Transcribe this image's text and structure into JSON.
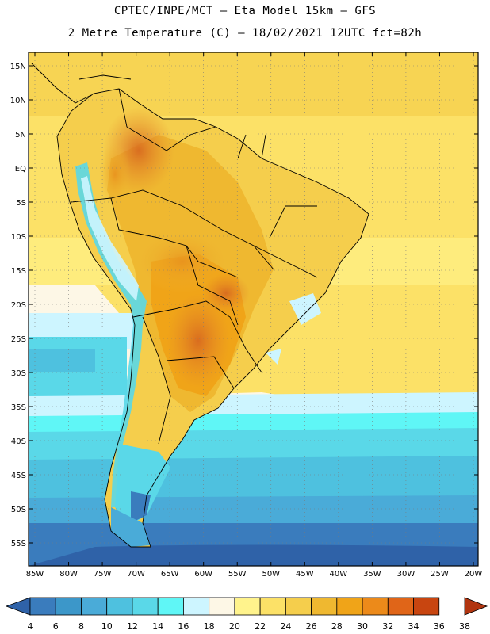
{
  "header": {
    "line1": "CPTEC/INPE/MCT –   Eta Model 15km – GFS",
    "line2": "2 Metre Temperature (C) – 18/02/2021 12UTC fct=82h"
  },
  "axes": {
    "lat_labels": [
      "15N",
      "10N",
      "5N",
      "EQ",
      "5S",
      "10S",
      "15S",
      "20S",
      "25S",
      "30S",
      "35S",
      "40S",
      "45S",
      "50S",
      "55S"
    ],
    "lon_labels": [
      "85W",
      "80W",
      "75W",
      "70W",
      "65W",
      "60W",
      "55W",
      "50W",
      "45W",
      "40W",
      "35W",
      "30W",
      "25W",
      "20W"
    ]
  },
  "colorbar": {
    "values": [
      "4",
      "6",
      "8",
      "10",
      "12",
      "14",
      "16",
      "18",
      "20",
      "22",
      "24",
      "26",
      "28",
      "30",
      "32",
      "34",
      "36",
      "38"
    ],
    "colors": [
      "#2f62a8",
      "#3a7cbd",
      "#3c97c9",
      "#4aabd8",
      "#4ec1df",
      "#5ad8e8",
      "#5ff6f6",
      "#cdf5ff",
      "#fdf7e6",
      "#fff38c",
      "#fce167",
      "#f5ce4c",
      "#efb830",
      "#f0a418",
      "#ec8a1a",
      "#e06518",
      "#c84510",
      "#b13510"
    ]
  }
}
